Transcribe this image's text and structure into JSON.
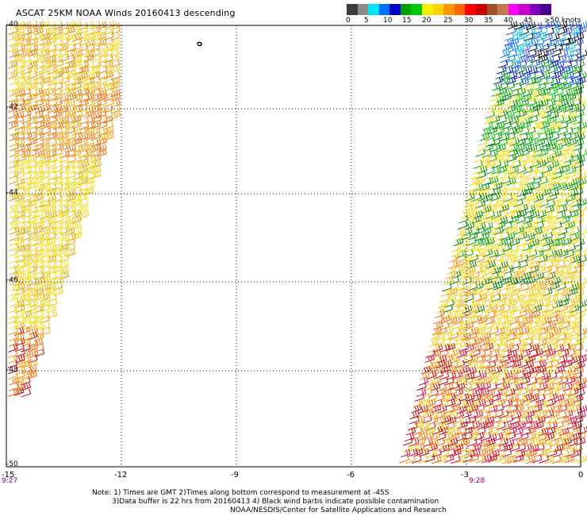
{
  "title": "ASCAT 25KM NOAA Winds 20160413 descending",
  "legend": {
    "labels": [
      "0",
      "5",
      "10",
      "15",
      "20",
      "25",
      "30",
      "35",
      "40",
      "45",
      ">50 knots"
    ],
    "colors": [
      "#3c3c3c",
      "#8c8c8c",
      "#00e4f6",
      "#0070ff",
      "#0000c8",
      "#00a000",
      "#00c800",
      "#f0f000",
      "#ffd200",
      "#ff9600",
      "#ff6400",
      "#ff0000",
      "#c80000",
      "#a05028",
      "#c87850",
      "#ff00ff",
      "#c800c8",
      "#8000c0",
      "#4b0090"
    ]
  },
  "axes": {
    "lat_labels": [
      "-40",
      "-42",
      "-44",
      "-46",
      "-48",
      "-50"
    ],
    "lon_labels": [
      "-15",
      "-12",
      "-9",
      "-6",
      "-3",
      "0"
    ]
  },
  "times": {
    "left": "9:27",
    "right": "9:28"
  },
  "notes": [
    "Note: 1) Times are GMT 2)Times along bottom correspond to measurement at -45S",
    "3)Data buffer is 22 hrs from 20160413 4) Black wind barbs indicate possible contamination",
    "NOAA/NESDIS/Center for Satellite Applications and Research"
  ]
}
